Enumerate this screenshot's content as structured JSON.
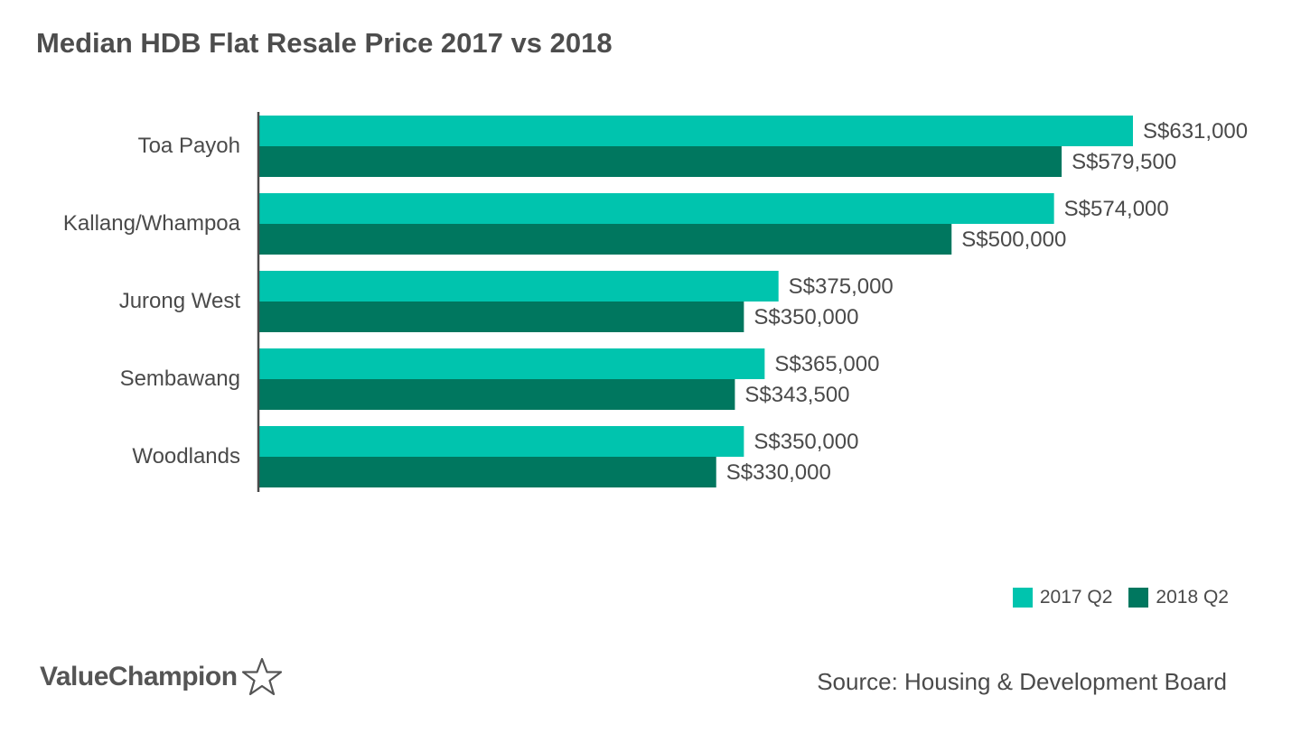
{
  "title": "Median HDB Flat Resale Price 2017 vs 2018",
  "source": "Source: Housing & Development Board",
  "brand": {
    "name": "ValueChampion",
    "icon": "star-outline-icon"
  },
  "colors": {
    "series_2017": "#00c4ae",
    "series_2018": "#00775f",
    "axis": "#4a4a4a",
    "text": "#4a4a4a"
  },
  "legend": {
    "items": [
      {
        "label": "2017 Q2",
        "color": "#00c4ae"
      },
      {
        "label": "2018 Q2",
        "color": "#00775f"
      }
    ],
    "placement": "bottom-right"
  },
  "chart_data": {
    "type": "bar",
    "orientation": "horizontal",
    "title": "Median HDB Flat Resale Price 2017 vs 2018",
    "categories": [
      "Toa Payoh",
      "Kallang/Whampoa",
      "Jurong West",
      "Sembawang",
      "Woodlands"
    ],
    "series": [
      {
        "name": "2017 Q2",
        "values": [
          631000,
          574000,
          375000,
          365000,
          350000
        ],
        "labels": [
          "S$631,000",
          "S$574,000",
          "S$375,000",
          "S$365,000",
          "S$350,000"
        ]
      },
      {
        "name": "2018 Q2",
        "values": [
          579500,
          500000,
          350000,
          343500,
          330000
        ],
        "labels": [
          "S$579,500",
          "S$500,000",
          "S$350,000",
          "S$343,500",
          "S$330,000"
        ]
      }
    ],
    "xlim": [
      0,
      631000
    ],
    "grid": false,
    "xlabel": "",
    "ylabel": ""
  }
}
